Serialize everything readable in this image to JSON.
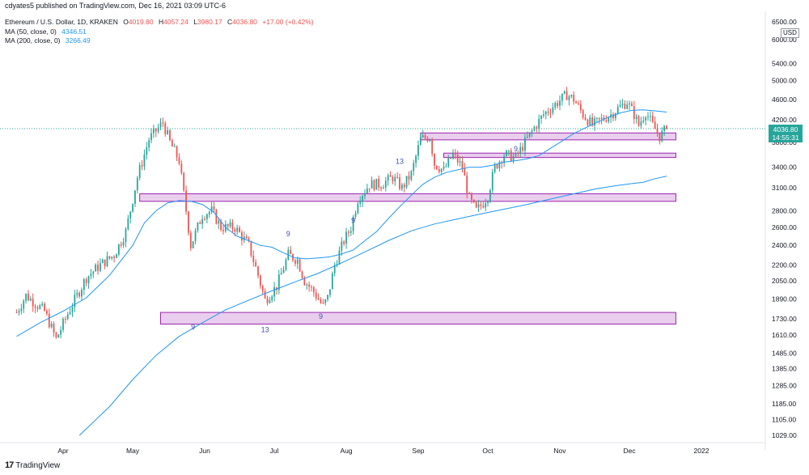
{
  "header": {
    "published": "cdyates5 published on TradingView.com, Dec 16, 2021 03:09 UTC-6"
  },
  "legend": {
    "symbol": "Ethereum / U.S. Dollar, 1D, KRAKEN",
    "open_label": "O",
    "open": "4019.80",
    "high_label": "H",
    "high": "4057.24",
    "low_label": "L",
    "low": "3980.17",
    "close_label": "C",
    "close": "4036.80",
    "change": "+17.00 (+0.42%)",
    "ma50_label": "MA (50, close, 0)",
    "ma50_value": "4346.51",
    "ma200_label": "MA (200, close, 0)",
    "ma200_value": "3266.49"
  },
  "price_tag": {
    "price": "4036.80",
    "countdown": "14:55:31",
    "color": "#26a69a"
  },
  "currency": "USD",
  "footer": {
    "brand": "TradingView",
    "logo": "17"
  },
  "colors": {
    "up": "#26a69a",
    "down": "#ef5350",
    "ma50": "#2196f3",
    "ma200": "#2196f3",
    "zone_fill": "#e1bee7",
    "zone_stroke": "#9c27b0",
    "count_label": "#3f51b5"
  },
  "chart_data": {
    "type": "candlestick",
    "symbol": "ETHUSD",
    "interval": "1D",
    "y_scale": "log",
    "y_ticks": [
      1029,
      1105,
      1185,
      1285,
      1385,
      1485,
      1610,
      1730,
      1890,
      2050,
      2200,
      2400,
      2600,
      2800,
      3100,
      3400,
      3800,
      4200,
      4600,
      5000,
      5400,
      6000,
      6500
    ],
    "y_ticks_labels": [
      "1029.00",
      "1105.00",
      "1185.00",
      "1285.00",
      "1385.00",
      "1485.00",
      "1610.00",
      "1730.00",
      "1890.00",
      "2050.00",
      "2200.00",
      "2400.00",
      "2600.00",
      "2800.00",
      "3100.00",
      "3400.00",
      "3800.00",
      "4200.00",
      "4600.00",
      "5000.00",
      "5400.00",
      "6000.00",
      "6500.00"
    ],
    "x_ticks": [
      {
        "label": "Apr",
        "day": 20
      },
      {
        "label": "May",
        "day": 50
      },
      {
        "label": "Jun",
        "day": 81
      },
      {
        "label": "Jul",
        "day": 111
      },
      {
        "label": "Aug",
        "day": 142
      },
      {
        "label": "Sep",
        "day": 173
      },
      {
        "label": "Oct",
        "day": 203
      },
      {
        "label": "Nov",
        "day": 234
      },
      {
        "label": "Dec",
        "day": 264
      },
      {
        "label": "2022",
        "day": 295
      }
    ],
    "key_prices": [
      {
        "day": 0,
        "price": 1780
      },
      {
        "day": 4,
        "price": 1920
      },
      {
        "day": 12,
        "price": 1790
      },
      {
        "day": 17,
        "price": 1580
      },
      {
        "day": 22,
        "price": 1770
      },
      {
        "day": 30,
        "price": 2080
      },
      {
        "day": 36,
        "price": 2200
      },
      {
        "day": 42,
        "price": 2300
      },
      {
        "day": 47,
        "price": 2550
      },
      {
        "day": 52,
        "price": 3250
      },
      {
        "day": 57,
        "price": 3850
      },
      {
        "day": 63,
        "price": 4150
      },
      {
        "day": 66,
        "price": 3800
      },
      {
        "day": 70,
        "price": 3500
      },
      {
        "day": 73,
        "price": 2800
      },
      {
        "day": 75,
        "price": 2400
      },
      {
        "day": 80,
        "price": 2750
      },
      {
        "day": 84,
        "price": 2800
      },
      {
        "day": 88,
        "price": 2600
      },
      {
        "day": 94,
        "price": 2600
      },
      {
        "day": 100,
        "price": 2400
      },
      {
        "day": 104,
        "price": 2100
      },
      {
        "day": 107,
        "price": 1880
      },
      {
        "day": 112,
        "price": 2000
      },
      {
        "day": 117,
        "price": 2300
      },
      {
        "day": 121,
        "price": 2250
      },
      {
        "day": 124,
        "price": 2050
      },
      {
        "day": 128,
        "price": 1950
      },
      {
        "day": 132,
        "price": 1830
      },
      {
        "day": 134,
        "price": 1900
      },
      {
        "day": 137,
        "price": 2200
      },
      {
        "day": 141,
        "price": 2450
      },
      {
        "day": 144,
        "price": 2600
      },
      {
        "day": 147,
        "price": 2950
      },
      {
        "day": 152,
        "price": 3150
      },
      {
        "day": 157,
        "price": 3150
      },
      {
        "day": 162,
        "price": 3250
      },
      {
        "day": 166,
        "price": 3100
      },
      {
        "day": 170,
        "price": 3300
      },
      {
        "day": 174,
        "price": 3850
      },
      {
        "day": 178,
        "price": 3900
      },
      {
        "day": 180,
        "price": 3450
      },
      {
        "day": 184,
        "price": 3350
      },
      {
        "day": 188,
        "price": 3600
      },
      {
        "day": 192,
        "price": 3400
      },
      {
        "day": 195,
        "price": 2950
      },
      {
        "day": 198,
        "price": 2800
      },
      {
        "day": 201,
        "price": 2900
      },
      {
        "day": 203,
        "price": 3000
      },
      {
        "day": 206,
        "price": 3400
      },
      {
        "day": 210,
        "price": 3600
      },
      {
        "day": 215,
        "price": 3550
      },
      {
        "day": 219,
        "price": 3800
      },
      {
        "day": 223,
        "price": 4050
      },
      {
        "day": 227,
        "price": 4300
      },
      {
        "day": 232,
        "price": 4500
      },
      {
        "day": 237,
        "price": 4700
      },
      {
        "day": 240,
        "price": 4600
      },
      {
        "day": 244,
        "price": 4300
      },
      {
        "day": 248,
        "price": 4100
      },
      {
        "day": 252,
        "price": 4200
      },
      {
        "day": 256,
        "price": 4300
      },
      {
        "day": 260,
        "price": 4450
      },
      {
        "day": 263,
        "price": 4550
      },
      {
        "day": 266,
        "price": 4300
      },
      {
        "day": 268,
        "price": 4100
      },
      {
        "day": 271,
        "price": 4350
      },
      {
        "day": 274,
        "price": 4100
      },
      {
        "day": 277,
        "price": 3900
      },
      {
        "day": 280,
        "price": 4036.8
      }
    ],
    "moving_averages": [
      {
        "name": "MA (50, close, 0)",
        "points": [
          [
            0,
            1600
          ],
          [
            10,
            1700
          ],
          [
            20,
            1790
          ],
          [
            30,
            1900
          ],
          [
            40,
            2100
          ],
          [
            50,
            2400
          ],
          [
            55,
            2650
          ],
          [
            60,
            2800
          ],
          [
            65,
            2900
          ],
          [
            70,
            2930
          ],
          [
            75,
            2920
          ],
          [
            80,
            2880
          ],
          [
            85,
            2780
          ],
          [
            90,
            2600
          ],
          [
            95,
            2500
          ],
          [
            100,
            2450
          ],
          [
            105,
            2400
          ],
          [
            110,
            2380
          ],
          [
            115,
            2320
          ],
          [
            120,
            2270
          ],
          [
            125,
            2260
          ],
          [
            130,
            2270
          ],
          [
            135,
            2280
          ],
          [
            140,
            2310
          ],
          [
            145,
            2350
          ],
          [
            150,
            2450
          ],
          [
            155,
            2550
          ],
          [
            160,
            2700
          ],
          [
            165,
            2850
          ],
          [
            170,
            3000
          ],
          [
            175,
            3150
          ],
          [
            180,
            3250
          ],
          [
            185,
            3320
          ],
          [
            190,
            3360
          ],
          [
            195,
            3400
          ],
          [
            200,
            3400
          ],
          [
            205,
            3430
          ],
          [
            210,
            3480
          ],
          [
            215,
            3500
          ],
          [
            220,
            3530
          ],
          [
            225,
            3580
          ],
          [
            230,
            3700
          ],
          [
            235,
            3820
          ],
          [
            240,
            3950
          ],
          [
            245,
            4050
          ],
          [
            250,
            4150
          ],
          [
            255,
            4250
          ],
          [
            260,
            4330
          ],
          [
            265,
            4380
          ],
          [
            270,
            4390
          ],
          [
            275,
            4370
          ],
          [
            280,
            4346.51
          ]
        ]
      },
      {
        "name": "MA (200, close, 0)",
        "points": [
          [
            27,
            1029
          ],
          [
            40,
            1170
          ],
          [
            50,
            1320
          ],
          [
            60,
            1470
          ],
          [
            70,
            1600
          ],
          [
            80,
            1700
          ],
          [
            90,
            1800
          ],
          [
            100,
            1880
          ],
          [
            110,
            1960
          ],
          [
            120,
            2040
          ],
          [
            130,
            2120
          ],
          [
            140,
            2220
          ],
          [
            150,
            2330
          ],
          [
            160,
            2450
          ],
          [
            170,
            2560
          ],
          [
            180,
            2640
          ],
          [
            190,
            2700
          ],
          [
            200,
            2760
          ],
          [
            210,
            2820
          ],
          [
            220,
            2880
          ],
          [
            230,
            2950
          ],
          [
            240,
            3020
          ],
          [
            250,
            3090
          ],
          [
            260,
            3140
          ],
          [
            265,
            3160
          ],
          [
            270,
            3180
          ],
          [
            275,
            3230
          ],
          [
            280,
            3266.49
          ]
        ]
      }
    ],
    "zones": [
      {
        "name": "support zone 1",
        "from_day": 53,
        "to_day": 284,
        "low": 2920,
        "high": 3020
      },
      {
        "name": "support zone 2",
        "from_day": 62,
        "to_day": 284,
        "low": 1690,
        "high": 1780
      },
      {
        "name": "resistance zone 1",
        "from_day": 174,
        "to_day": 284,
        "low": 3840,
        "high": 3960
      },
      {
        "name": "resistance zone 2",
        "from_day": 184,
        "to_day": 284,
        "low": 3550,
        "high": 3620
      }
    ],
    "count_labels": [
      {
        "text": "9",
        "day": 76,
        "price": 1650
      },
      {
        "text": "9",
        "day": 117,
        "price": 2500
      },
      {
        "text": "13",
        "day": 107,
        "price": 1630
      },
      {
        "text": "9",
        "day": 131,
        "price": 1730
      },
      {
        "text": "9",
        "day": 145,
        "price": 2650
      },
      {
        "text": "13",
        "day": 165,
        "price": 3450
      },
      {
        "text": "9",
        "day": 215,
        "price": 3650
      }
    ],
    "last_price": 4036.8
  }
}
